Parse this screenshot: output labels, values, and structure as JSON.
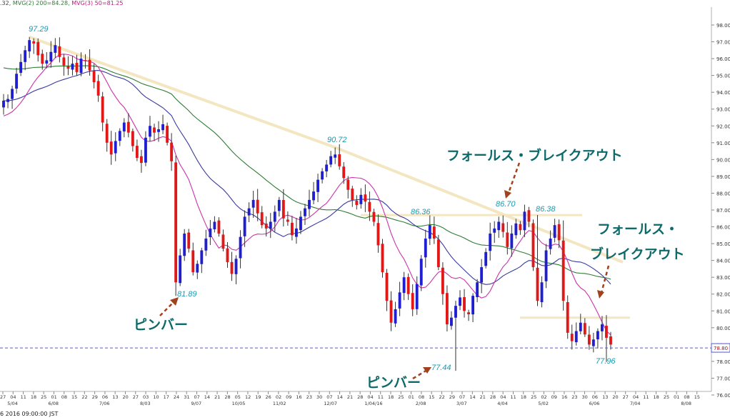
{
  "header": {
    "prefix": ".32,",
    "ma200": "MVG(2) 200=84.28,",
    "ma50": "MVG(3) 50=81.25"
  },
  "footer": {
    "timestamp": "6 2016 09:00:00 JST"
  },
  "colors": {
    "bull": "#1f1fd0",
    "bear": "#e01818",
    "ma200": "#2e7d32",
    "ma100": "#3a3aa0",
    "ma50": "#cc33aa",
    "label": "#1a9ab0",
    "annot": "#0e6a6a",
    "arrow": "#a0421e",
    "trend": "#f3e6c0",
    "current": "#5555dd"
  },
  "chart_data": {
    "type": "candlestick",
    "ylim": [
      76,
      99
    ],
    "yticks": [
      76,
      77,
      78,
      79,
      80,
      81,
      82,
      83,
      84,
      85,
      86,
      87,
      88,
      89,
      90,
      91,
      92,
      93,
      94,
      95,
      96,
      97,
      98
    ],
    "current_price": "78.80",
    "day_ticks": [
      "27",
      "04",
      "11",
      "18",
      "25",
      "01",
      "08",
      "15",
      "22",
      "29",
      "06",
      "13",
      "20",
      "27",
      "03",
      "10",
      "17",
      "24",
      "31",
      "07",
      "14",
      "21",
      "28",
      "05",
      "12",
      "19",
      "26",
      "02",
      "09",
      "16",
      "23",
      "30",
      "07",
      "14",
      "21",
      "28",
      "04",
      "11",
      "18",
      "25",
      "01",
      "08",
      "15",
      "22",
      "29",
      "07",
      "14",
      "21",
      "28",
      "04",
      "11",
      "18",
      "25",
      "02",
      "09",
      "16",
      "23",
      "30",
      "06",
      "13",
      "20",
      "27",
      "04",
      "11",
      "18",
      "25",
      "01",
      "08",
      "15"
    ],
    "month_labels": [
      "5/04",
      "6/08",
      "7/06",
      "8/03",
      "9/07",
      "10/05",
      "11/02",
      "12/07",
      "1/04/16",
      "2/08",
      "3/07",
      "4/04",
      "5/02",
      "6/06",
      "7/04",
      "8/08"
    ],
    "close_series": [
      93.5,
      93.6,
      94.2,
      95.1,
      95.8,
      96.5,
      97.1,
      96.9,
      96.2,
      95.7,
      95.9,
      96.4,
      96.8,
      96.1,
      95.6,
      95.4,
      95.7,
      95.2,
      96.0,
      95.9,
      95.3,
      94.6,
      93.8,
      92.2,
      91.0,
      90.3,
      91.1,
      91.7,
      92.2,
      91.6,
      90.8,
      90.1,
      89.8,
      91.3,
      92.0,
      91.6,
      91.8,
      92.1,
      91.0,
      89.9,
      82.7,
      84.3,
      85.6,
      84.7,
      83.3,
      83.8,
      84.6,
      85.3,
      85.9,
      86.3,
      85.6,
      84.7,
      83.9,
      83.2,
      84.1,
      85.4,
      86.6,
      87.1,
      87.6,
      86.8,
      86.1,
      85.9,
      86.3,
      86.9,
      87.6,
      86.5,
      86.3,
      85.5,
      85.9,
      86.6,
      87.1,
      87.6,
      88.1,
      88.8,
      89.3,
      89.7,
      90.2,
      90.3,
      89.6,
      88.9,
      88.2,
      87.6,
      87.3,
      87.9,
      87.5,
      86.9,
      86.3,
      84.9,
      83.3,
      81.6,
      80.3,
      81.1,
      82.1,
      83.0,
      82.0,
      81.1,
      82.6,
      84.1,
      85.3,
      86.1,
      85.3,
      83.6,
      82.0,
      80.2,
      80.6,
      81.3,
      81.8,
      81.0,
      80.8,
      81.9,
      82.7,
      83.6,
      84.5,
      85.6,
      85.9,
      86.3,
      85.7,
      84.8,
      85.6,
      86.2,
      85.8,
      86.9,
      86.3,
      83.6,
      81.6,
      82.7,
      84.6,
      85.3,
      86.1,
      85.2,
      81.6,
      79.7,
      79.2,
      79.8,
      80.3,
      79.6,
      79.0,
      79.3,
      79.8,
      80.2,
      79.4,
      79.0
    ]
  },
  "annotations": {
    "hi1": "97.29",
    "hi2": "90.72",
    "hi3": "86.36",
    "hi4": "86.70",
    "hi5": "86.38",
    "lo1": "81.89",
    "lo2": "77.44",
    "lo3": "77.96",
    "false_breakout_1": "フォールス・ブレイクアウト",
    "false_breakout_2a": "フォールス・",
    "false_breakout_2b": "ブレイクアウト",
    "pinbar_1": "ピンバー",
    "pinbar_2": "ピンバー"
  }
}
